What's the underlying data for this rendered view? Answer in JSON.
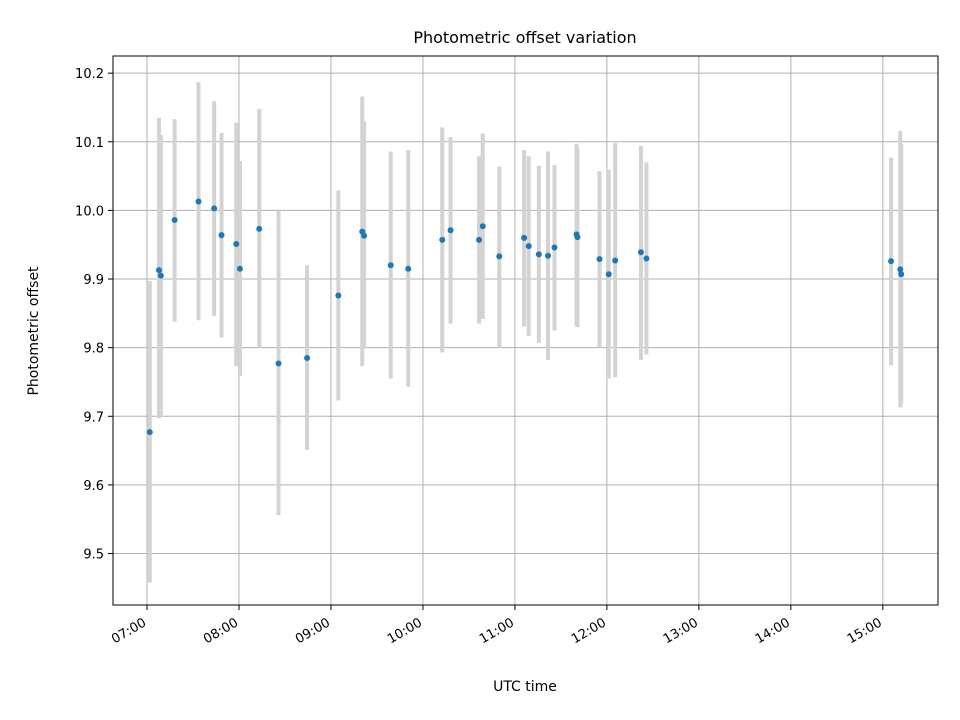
{
  "chart_data": {
    "type": "scatter",
    "title": "Photometric offset variation",
    "xlabel": "UTC time",
    "ylabel": "Photometric offset",
    "x_unit": "hours UTC",
    "xlim": [
      6.63,
      15.6
    ],
    "ylim": [
      9.425,
      10.225
    ],
    "grid": true,
    "x_ticks": [
      {
        "value": 7,
        "label": "07:00"
      },
      {
        "value": 8,
        "label": "08:00"
      },
      {
        "value": 9,
        "label": "09:00"
      },
      {
        "value": 10,
        "label": "10:00"
      },
      {
        "value": 11,
        "label": "11:00"
      },
      {
        "value": 12,
        "label": "12:00"
      },
      {
        "value": 13,
        "label": "13:00"
      },
      {
        "value": 14,
        "label": "14:00"
      },
      {
        "value": 15,
        "label": "15:00"
      }
    ],
    "y_ticks": [
      {
        "value": 9.5,
        "label": "9.5"
      },
      {
        "value": 9.6,
        "label": "9.6"
      },
      {
        "value": 9.7,
        "label": "9.7"
      },
      {
        "value": 9.8,
        "label": "9.8"
      },
      {
        "value": 9.9,
        "label": "9.9"
      },
      {
        "value": 10.0,
        "label": "10.0"
      },
      {
        "value": 10.1,
        "label": "10.1"
      },
      {
        "value": 10.2,
        "label": "10.2"
      }
    ],
    "colors": {
      "point": "#1f77b4",
      "errorbar": "#d3d3d3",
      "grid": "#b0b0b0"
    },
    "points": [
      {
        "x": 7.03,
        "y": 9.677,
        "lo": 9.458,
        "hi": 9.897
      },
      {
        "x": 7.13,
        "y": 9.913,
        "lo": 9.697,
        "hi": 10.135
      },
      {
        "x": 7.15,
        "y": 9.905,
        "lo": 9.7,
        "hi": 10.11
      },
      {
        "x": 7.3,
        "y": 9.986,
        "lo": 9.838,
        "hi": 10.133
      },
      {
        "x": 7.56,
        "y": 10.013,
        "lo": 9.84,
        "hi": 10.187
      },
      {
        "x": 7.73,
        "y": 10.003,
        "lo": 9.846,
        "hi": 10.159
      },
      {
        "x": 7.81,
        "y": 9.964,
        "lo": 9.815,
        "hi": 10.113
      },
      {
        "x": 7.97,
        "y": 9.951,
        "lo": 9.773,
        "hi": 10.128
      },
      {
        "x": 8.01,
        "y": 9.915,
        "lo": 9.759,
        "hi": 10.072
      },
      {
        "x": 8.22,
        "y": 9.973,
        "lo": 9.8,
        "hi": 10.148
      },
      {
        "x": 8.43,
        "y": 9.777,
        "lo": 9.556,
        "hi": 9.999
      },
      {
        "x": 8.74,
        "y": 9.785,
        "lo": 9.651,
        "hi": 9.92
      },
      {
        "x": 9.08,
        "y": 9.876,
        "lo": 9.723,
        "hi": 10.029
      },
      {
        "x": 9.34,
        "y": 9.969,
        "lo": 9.773,
        "hi": 10.166
      },
      {
        "x": 9.36,
        "y": 9.963,
        "lo": 9.8,
        "hi": 10.13
      },
      {
        "x": 9.65,
        "y": 9.92,
        "lo": 9.755,
        "hi": 10.086
      },
      {
        "x": 9.84,
        "y": 9.915,
        "lo": 9.743,
        "hi": 10.088
      },
      {
        "x": 10.21,
        "y": 9.957,
        "lo": 9.793,
        "hi": 10.121
      },
      {
        "x": 10.3,
        "y": 9.971,
        "lo": 9.835,
        "hi": 10.107
      },
      {
        "x": 10.61,
        "y": 9.957,
        "lo": 9.835,
        "hi": 10.079
      },
      {
        "x": 10.65,
        "y": 9.977,
        "lo": 9.842,
        "hi": 10.112
      },
      {
        "x": 10.83,
        "y": 9.933,
        "lo": 9.8,
        "hi": 10.064
      },
      {
        "x": 11.1,
        "y": 9.96,
        "lo": 9.831,
        "hi": 10.088
      },
      {
        "x": 11.15,
        "y": 9.948,
        "lo": 9.817,
        "hi": 10.079
      },
      {
        "x": 11.26,
        "y": 9.936,
        "lo": 9.807,
        "hi": 10.065
      },
      {
        "x": 11.36,
        "y": 9.934,
        "lo": 9.782,
        "hi": 10.086
      },
      {
        "x": 11.43,
        "y": 9.946,
        "lo": 9.825,
        "hi": 10.066
      },
      {
        "x": 11.67,
        "y": 9.965,
        "lo": 9.832,
        "hi": 10.097
      },
      {
        "x": 11.68,
        "y": 9.961,
        "lo": 9.83,
        "hi": 10.09
      },
      {
        "x": 11.92,
        "y": 9.929,
        "lo": 9.8,
        "hi": 10.057
      },
      {
        "x": 12.02,
        "y": 9.907,
        "lo": 9.755,
        "hi": 10.059
      },
      {
        "x": 12.09,
        "y": 9.927,
        "lo": 9.757,
        "hi": 10.098
      },
      {
        "x": 12.37,
        "y": 9.939,
        "lo": 9.782,
        "hi": 10.094
      },
      {
        "x": 12.43,
        "y": 9.93,
        "lo": 9.79,
        "hi": 10.07
      },
      {
        "x": 15.09,
        "y": 9.926,
        "lo": 9.774,
        "hi": 10.077
      },
      {
        "x": 15.19,
        "y": 9.914,
        "lo": 9.713,
        "hi": 10.116
      },
      {
        "x": 15.2,
        "y": 9.907,
        "lo": 9.718,
        "hi": 10.097
      }
    ]
  }
}
